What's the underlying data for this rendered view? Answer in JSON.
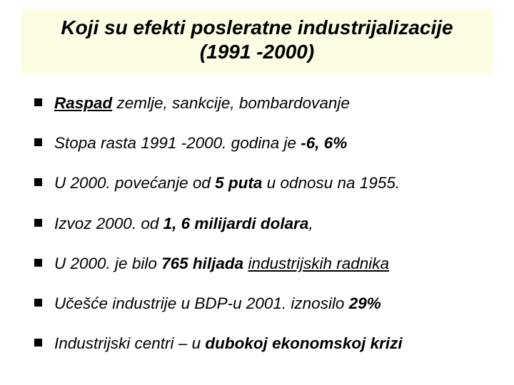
{
  "colors": {
    "background": "#ffffff",
    "title_background": "#fdfde3",
    "text": "#000000",
    "bullet_marker": "#000000"
  },
  "typography": {
    "font_family": "Arial",
    "title_fontsize_pt": 21,
    "title_weight": "bold",
    "title_style": "italic",
    "body_fontsize_pt": 17,
    "body_style": "italic"
  },
  "title": {
    "line1": "Koji su efekti posleratne industrijalizacije",
    "line2": "(1991 -2000)"
  },
  "bullets": [
    {
      "parts": [
        {
          "text": "Raspad",
          "bold": true,
          "underline": true
        },
        {
          "text": " zemlje, sankcije, bombardovanje",
          "bold": false,
          "underline": false
        }
      ]
    },
    {
      "parts": [
        {
          "text": "Stopa rasta 1991 -2000. godina je ",
          "bold": false,
          "underline": false
        },
        {
          "text": "-6, 6%",
          "bold": true,
          "underline": false
        }
      ]
    },
    {
      "parts": [
        {
          "text": "U 2000. povećanje od ",
          "bold": false,
          "underline": false
        },
        {
          "text": "5 puta",
          "bold": true,
          "underline": false
        },
        {
          "text": " u odnosu na 1955.",
          "bold": false,
          "underline": false
        }
      ]
    },
    {
      "parts": [
        {
          "text": "Izvoz 2000. od ",
          "bold": false,
          "underline": false
        },
        {
          "text": "1, 6 milijardi dolara",
          "bold": true,
          "underline": false
        },
        {
          "text": ",",
          "bold": false,
          "underline": false
        }
      ]
    },
    {
      "parts": [
        {
          "text": "U 2000. je bilo ",
          "bold": false,
          "underline": false
        },
        {
          "text": "765 hiljada",
          "bold": true,
          "underline": false
        },
        {
          "text": " ",
          "bold": false,
          "underline": false
        },
        {
          "text": "industrijskih radnika",
          "bold": false,
          "underline": true
        }
      ]
    },
    {
      "parts": [
        {
          "text": "Učešće industrije u BDP-u 2001. iznosilo ",
          "bold": false,
          "underline": false
        },
        {
          "text": "29%",
          "bold": true,
          "underline": false
        }
      ]
    },
    {
      "parts": [
        {
          "text": "Industrijski centri – u ",
          "bold": false,
          "underline": false
        },
        {
          "text": "dubokoj ekonomskoj krizi",
          "bold": true,
          "underline": false
        }
      ]
    }
  ]
}
